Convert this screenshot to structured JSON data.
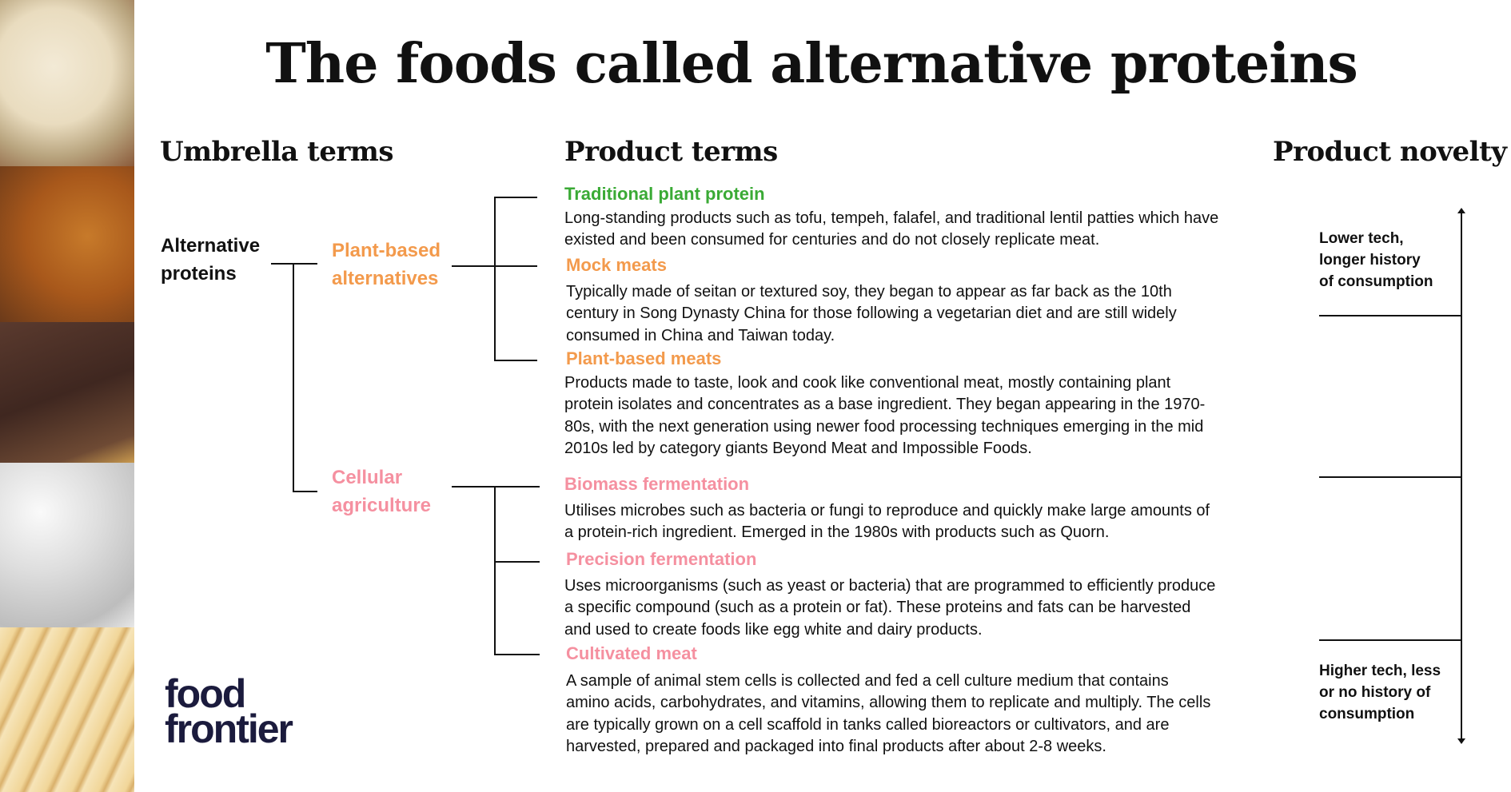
{
  "title": "The foods called alternative proteins",
  "colors": {
    "plant_traditional": "#3aaa35",
    "plant_based": "#f39a4c",
    "cellular": "#f590a0",
    "logo": "#1b1b3d"
  },
  "headings": {
    "umbrella": "Umbrella terms",
    "product": "Product terms",
    "novelty": "Product novelty"
  },
  "umbrella": {
    "root": [
      "Alternative",
      "proteins"
    ],
    "plant_based": [
      "Plant-based",
      "alternatives"
    ],
    "cellular": [
      "Cellular",
      "agriculture"
    ]
  },
  "products": [
    {
      "title": "Traditional plant protein",
      "lines": [
        "Long-standing products such as tofu, tempeh, falafel, and traditional lentil patties which have",
        "existed and been consumed for centuries and do not closely replicate meat."
      ]
    },
    {
      "title": "Mock meats",
      "lines": [
        "Typically made of seitan or textured soy, they began to appear as far back as the 10th",
        "century in Song Dynasty China for those following a vegetarian diet and are still widely",
        "consumed in China and Taiwan today."
      ]
    },
    {
      "title": "Plant-based meats",
      "lines": [
        "Products made to taste, look and cook like conventional meat, mostly containing plant",
        "protein isolates and concentrates as a base ingredient. They began appearing in the 1970-",
        "80s, with the next generation using newer food processing techniques emerging in the mid",
        "2010s led by category giants Beyond Meat and Impossible Foods."
      ]
    },
    {
      "title": "Biomass fermentation",
      "lines": [
        "Utilises microbes such as bacteria or fungi to reproduce and quickly make large amounts of",
        "a protein-rich ingredient. Emerged in the 1980s with products such as Quorn."
      ]
    },
    {
      "title": "Precision fermentation",
      "lines": [
        "Uses microorganisms (such as yeast or bacteria) that are programmed to efficiently produce",
        "a specific compound (such as a protein or fat). These proteins and fats can be harvested",
        "and used to create foods like egg white and dairy products."
      ]
    },
    {
      "title": "Cultivated meat",
      "lines": [
        "A sample of animal stem cells is collected and fed a cell culture medium that contains",
        "amino acids, carbohydrates, and vitamins, allowing them to replicate and multiply. The cells",
        "are typically grown on a cell scaffold in tanks called bioreactors or cultivators, and are",
        "harvested, prepared and packaged into final products after about 2-8 weeks."
      ]
    }
  ],
  "novelty": {
    "low": [
      "Lower tech,",
      "longer history",
      "of consumption"
    ],
    "high": [
      "Higher tech, less",
      "or no history of",
      "consumption"
    ]
  },
  "logo": [
    "food",
    "frontier"
  ]
}
